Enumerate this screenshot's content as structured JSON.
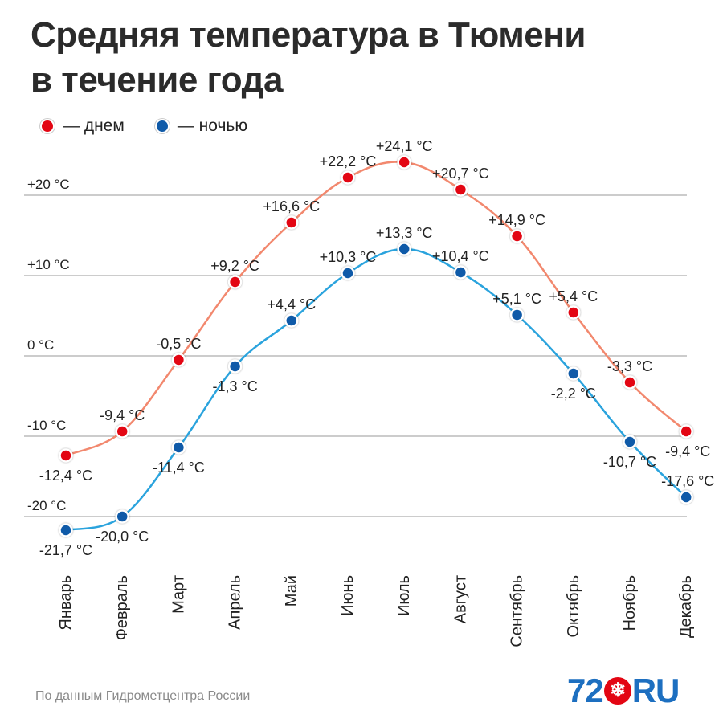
{
  "title_line1": "Средняя температура в Тюмени",
  "title_line2": "в течение года",
  "legend": {
    "day_label": "— днем",
    "night_label": "— ночью"
  },
  "source": "По данным Гидрометцентра России",
  "logo": {
    "left": "72",
    "ball": "❄",
    "right": "RU"
  },
  "colors": {
    "day_line": "#f2886e",
    "day_point": "#e30613",
    "night_line": "#2aa3dd",
    "night_point": "#0f5aa8",
    "grid": "#9a9a9a"
  },
  "chart_data": {
    "type": "line",
    "categories": [
      "Январь",
      "Февраль",
      "Март",
      "Апрель",
      "Май",
      "Июнь",
      "Июль",
      "Август",
      "Сентябрь",
      "Октябрь",
      "Ноябрь",
      "Декабрь"
    ],
    "ylim": [
      -20,
      20
    ],
    "y_ticks": [
      {
        "value": 20,
        "label": "+20 °C"
      },
      {
        "value": 10,
        "label": "+10 °C"
      },
      {
        "value": 0,
        "label": "0 °C"
      },
      {
        "value": -10,
        "label": "-10 °C"
      },
      {
        "value": -20,
        "label": "-20 °C"
      }
    ],
    "grid": true,
    "series": [
      {
        "name": "днем",
        "values": [
          -12.4,
          -9.4,
          -0.5,
          9.2,
          16.6,
          22.2,
          24.1,
          20.7,
          14.9,
          5.4,
          -3.3,
          -9.4
        ],
        "labels": [
          "-12,4 °C",
          "-9,4 °C",
          "-0,5 °C",
          "+9,2 °C",
          "+16,6 °C",
          "+22,2 °C",
          "+24,1 °C",
          "+20,7 °C",
          "+14,9 °C",
          "+5,4 °C",
          "-3,3 °C",
          "-9,4 °C"
        ],
        "label_side": [
          "below",
          "above",
          "above",
          "above",
          "above",
          "above",
          "above",
          "above",
          "above",
          "above",
          "above",
          "below"
        ]
      },
      {
        "name": "ночью",
        "values": [
          -21.7,
          -20.0,
          -11.4,
          -1.3,
          4.4,
          10.3,
          13.3,
          10.4,
          5.1,
          -2.2,
          -10.7,
          -17.6
        ],
        "labels": [
          "-21,7 °C",
          "-20,0 °C",
          "-11,4 °C",
          "-1,3 °C",
          "+4,4 °C",
          "+10,3 °C",
          "+13,3 °C",
          "+10,4 °C",
          "+5,1 °C",
          "-2,2 °C",
          "-10,7 °C",
          "-17,6 °C"
        ],
        "label_side": [
          "below",
          "below",
          "below",
          "below",
          "above",
          "above",
          "above",
          "above",
          "above",
          "below",
          "below",
          "above"
        ]
      }
    ]
  }
}
